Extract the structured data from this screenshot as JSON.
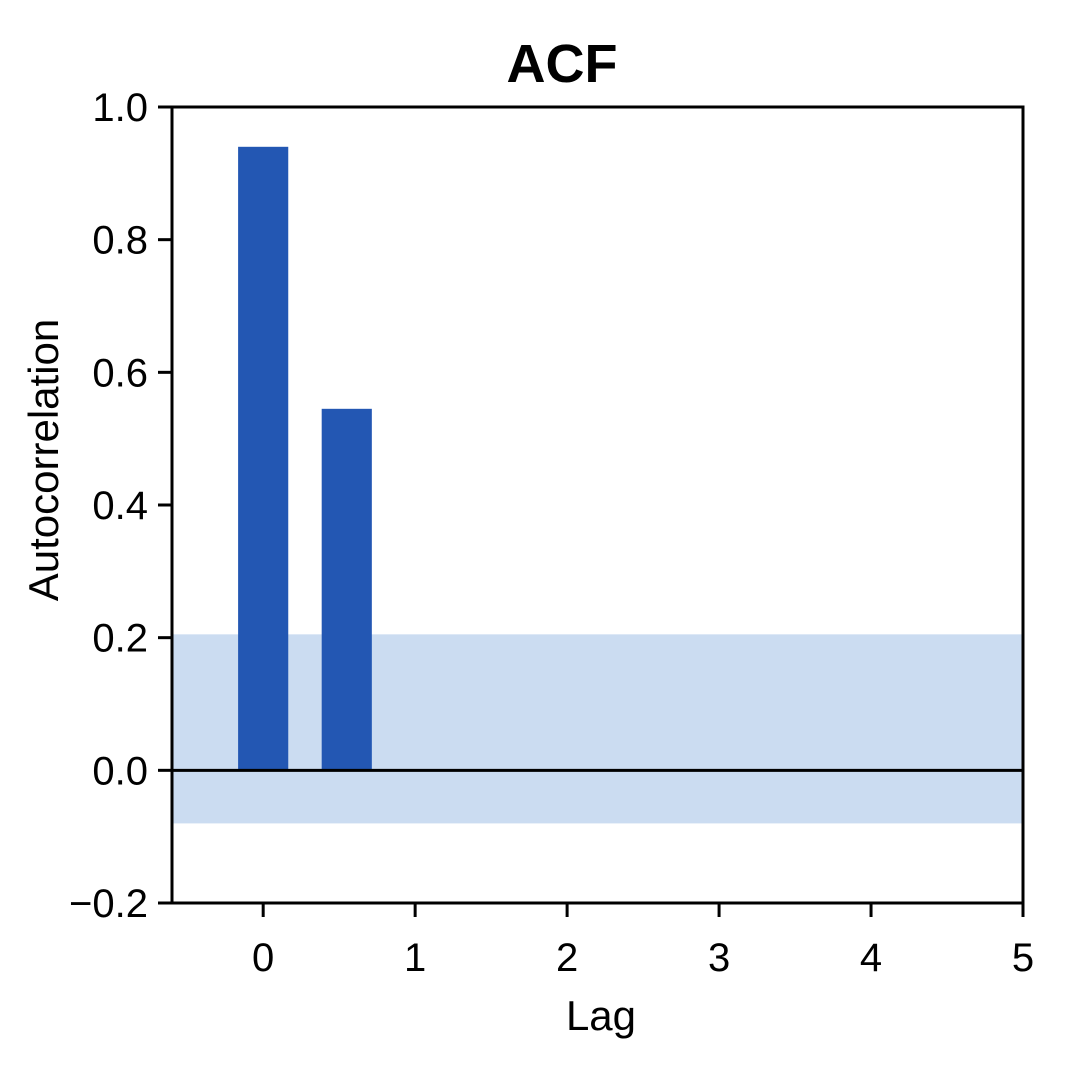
{
  "chart_data": {
    "type": "bar",
    "title": "ACF",
    "xlabel": "Lag",
    "ylabel": "Autocorrelation",
    "xlim": [
      -0.6,
      5.0
    ],
    "ylim": [
      -0.2,
      1.0
    ],
    "xticks": [
      0,
      1,
      2,
      3,
      4,
      5
    ],
    "xtick_labels": [
      "0",
      "1",
      "2",
      "3",
      "4",
      "5"
    ],
    "yticks": [
      -0.2,
      0.0,
      0.2,
      0.4,
      0.6,
      0.8,
      1.0
    ],
    "ytick_labels": [
      "−0.2",
      "0.0",
      "0.2",
      "0.4",
      "0.6",
      "0.8",
      "1.0"
    ],
    "bars": [
      {
        "x": 0.0,
        "value": 0.94
      },
      {
        "x": 0.55,
        "value": 0.545
      }
    ],
    "bar_width": 0.33,
    "confidence_band": [
      -0.08,
      0.205
    ],
    "bar_color": "#2357b3",
    "band_color": "#cbdcf1",
    "grid": false,
    "legend": "none"
  }
}
